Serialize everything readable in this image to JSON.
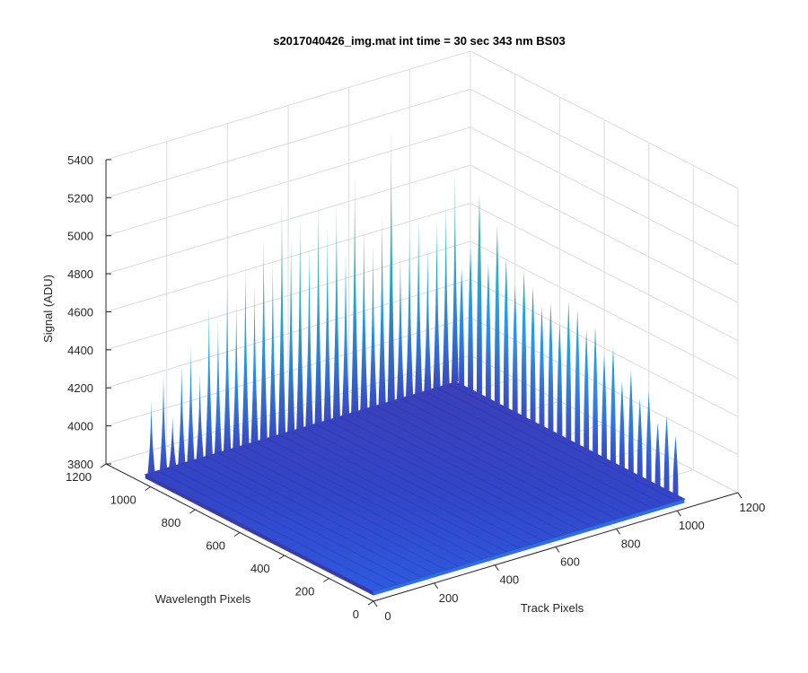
{
  "chart_data": {
    "type": "surface",
    "title": "s2017040426_img.mat int time = 30 sec  343 nm BS03",
    "xlabel": "Track Pixels",
    "ylabel": "Wavelength Pixels",
    "zlabel": "Signal (ADU)",
    "xlim": [
      0,
      1200
    ],
    "ylim": [
      0,
      1200
    ],
    "zlim": [
      3800,
      5400
    ],
    "x_ticks": [
      "0",
      "200",
      "400",
      "600",
      "800",
      "1000",
      "1200"
    ],
    "y_ticks": [
      "0",
      "200",
      "400",
      "600",
      "800",
      "1000",
      "1200"
    ],
    "z_ticks": [
      "3800",
      "4000",
      "4200",
      "4400",
      "4600",
      "4800",
      "5000",
      "5200",
      "5400"
    ],
    "grid": true,
    "colormap": "parula",
    "colors": {
      "low": "#3e26a8",
      "mid": "#2d8cf0",
      "high": "#1fbfb8",
      "peak": "#d9d53a"
    },
    "baseline_signal": 3850,
    "surface_extent": {
      "track": [
        0,
        1024
      ],
      "wavelength": [
        0,
        1024
      ]
    },
    "back_edge_peaks": [
      {
        "x": 20,
        "y": 1024,
        "value": 4230
      },
      {
        "x": 60,
        "y": 1024,
        "value": 4350
      },
      {
        "x": 90,
        "y": 1024,
        "value": 4120
      },
      {
        "x": 120,
        "y": 1024,
        "value": 4380
      },
      {
        "x": 150,
        "y": 1024,
        "value": 4460
      },
      {
        "x": 180,
        "y": 1024,
        "value": 4300
      },
      {
        "x": 210,
        "y": 1024,
        "value": 4640
      },
      {
        "x": 240,
        "y": 1024,
        "value": 4540
      },
      {
        "x": 270,
        "y": 1024,
        "value": 4720
      },
      {
        "x": 300,
        "y": 1024,
        "value": 4620
      },
      {
        "x": 330,
        "y": 1024,
        "value": 4800
      },
      {
        "x": 360,
        "y": 1024,
        "value": 4680
      },
      {
        "x": 390,
        "y": 1024,
        "value": 4920
      },
      {
        "x": 420,
        "y": 1024,
        "value": 4780
      },
      {
        "x": 450,
        "y": 1024,
        "value": 5080
      },
      {
        "x": 480,
        "y": 1024,
        "value": 4880
      },
      {
        "x": 510,
        "y": 1024,
        "value": 4960
      },
      {
        "x": 540,
        "y": 1024,
        "value": 4800
      },
      {
        "x": 570,
        "y": 1024,
        "value": 5020
      },
      {
        "x": 600,
        "y": 1024,
        "value": 4860
      },
      {
        "x": 630,
        "y": 1024,
        "value": 4980
      },
      {
        "x": 660,
        "y": 1024,
        "value": 4720
      },
      {
        "x": 690,
        "y": 1024,
        "value": 5100
      },
      {
        "x": 720,
        "y": 1024,
        "value": 4820
      },
      {
        "x": 750,
        "y": 1024,
        "value": 4700
      },
      {
        "x": 780,
        "y": 1024,
        "value": 4860
      },
      {
        "x": 810,
        "y": 1024,
        "value": 5280
      },
      {
        "x": 840,
        "y": 1024,
        "value": 4620
      },
      {
        "x": 870,
        "y": 1024,
        "value": 4700
      },
      {
        "x": 900,
        "y": 1024,
        "value": 4780
      },
      {
        "x": 930,
        "y": 1024,
        "value": 4620
      },
      {
        "x": 960,
        "y": 1024,
        "value": 4740
      },
      {
        "x": 990,
        "y": 1024,
        "value": 4820
      },
      {
        "x": 1020,
        "y": 1024,
        "value": 4960
      }
    ],
    "right_edge_peaks": [
      {
        "x": 1024,
        "y": 40,
        "value": 4160
      },
      {
        "x": 1024,
        "y": 80,
        "value": 4240
      },
      {
        "x": 1024,
        "y": 120,
        "value": 4180
      },
      {
        "x": 1024,
        "y": 160,
        "value": 4320
      },
      {
        "x": 1024,
        "y": 200,
        "value": 4260
      },
      {
        "x": 1024,
        "y": 240,
        "value": 4380
      },
      {
        "x": 1024,
        "y": 280,
        "value": 4300
      },
      {
        "x": 1024,
        "y": 320,
        "value": 4460
      },
      {
        "x": 1024,
        "y": 360,
        "value": 4400
      },
      {
        "x": 1024,
        "y": 400,
        "value": 4520
      },
      {
        "x": 1024,
        "y": 440,
        "value": 4480
      },
      {
        "x": 1024,
        "y": 480,
        "value": 4560
      },
      {
        "x": 1024,
        "y": 520,
        "value": 4580
      },
      {
        "x": 1024,
        "y": 560,
        "value": 4440
      },
      {
        "x": 1024,
        "y": 600,
        "value": 4520
      },
      {
        "x": 1024,
        "y": 640,
        "value": 4480
      },
      {
        "x": 1024,
        "y": 680,
        "value": 4560
      },
      {
        "x": 1024,
        "y": 720,
        "value": 4620
      },
      {
        "x": 1024,
        "y": 760,
        "value": 4520
      },
      {
        "x": 1024,
        "y": 800,
        "value": 4640
      },
      {
        "x": 1024,
        "y": 840,
        "value": 4780
      },
      {
        "x": 1024,
        "y": 880,
        "value": 4560
      },
      {
        "x": 1024,
        "y": 920,
        "value": 4900
      },
      {
        "x": 1024,
        "y": 960,
        "value": 4600
      },
      {
        "x": 1024,
        "y": 1000,
        "value": 4460
      }
    ]
  }
}
